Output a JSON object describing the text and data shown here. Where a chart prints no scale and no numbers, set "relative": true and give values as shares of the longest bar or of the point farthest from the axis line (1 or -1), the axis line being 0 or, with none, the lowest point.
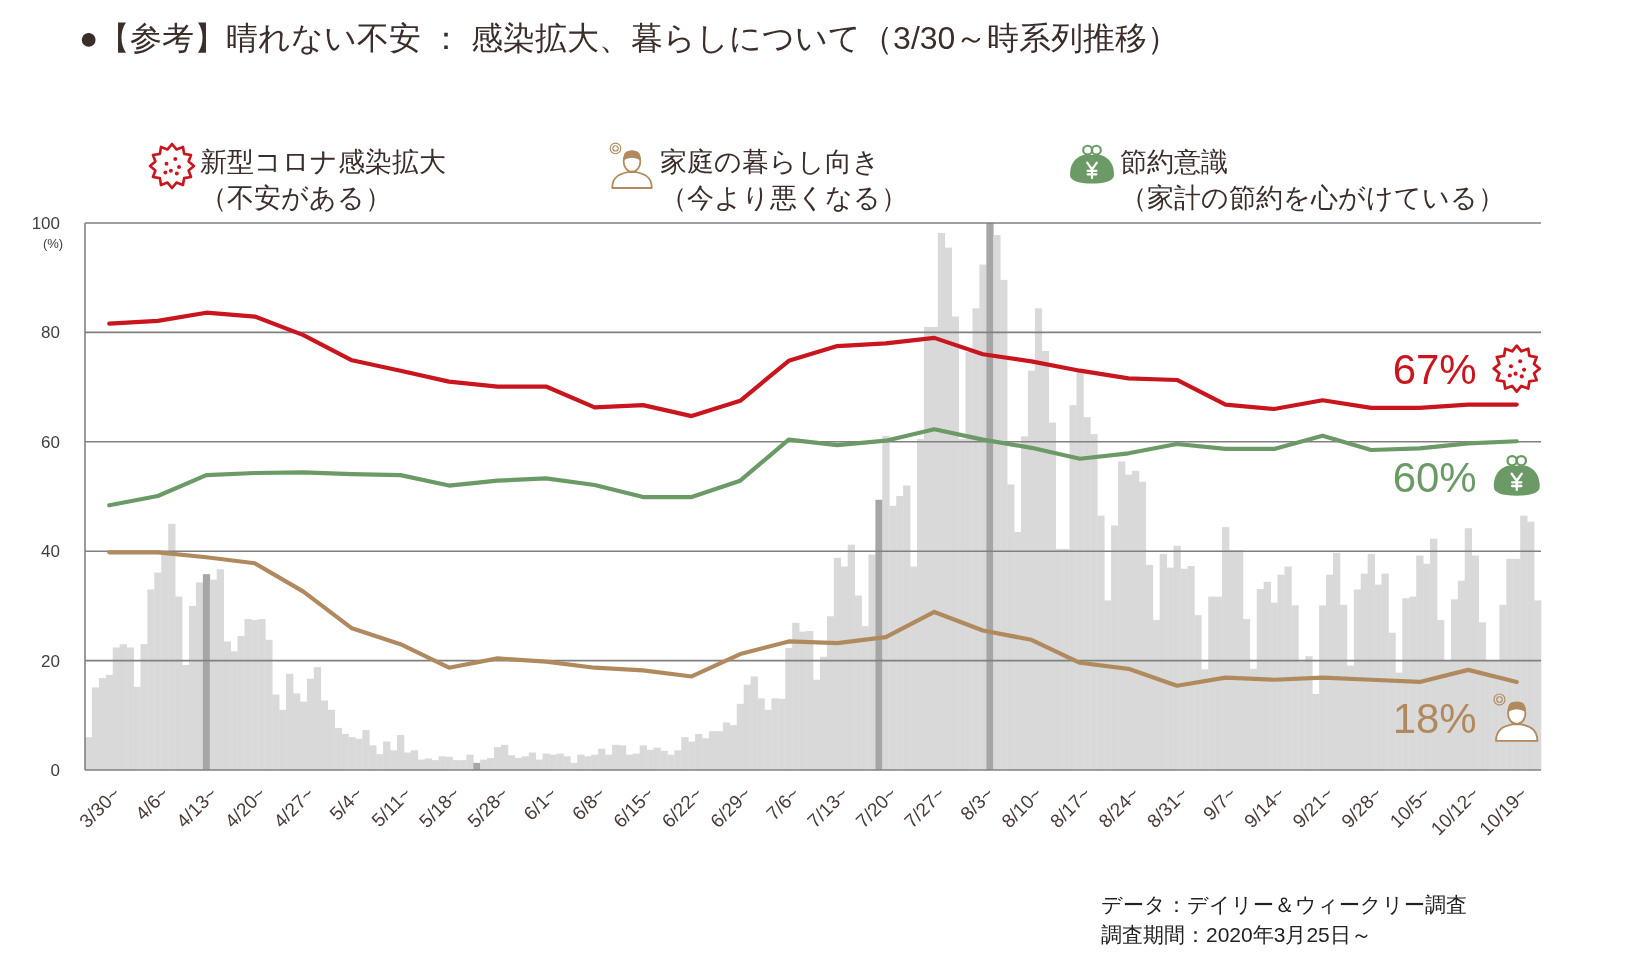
{
  "chart_data": [
    {
      "type": "line",
      "title": "●【参考】晴れない不安 ： 感染拡大、暮らしについて（3/30～時系列推移）",
      "ylabel": "(%)",
      "categories": [
        "3/30~",
        "4/6~",
        "4/13~",
        "4/20~",
        "4/27~",
        "5/4~",
        "5/11~",
        "5/18~",
        "5/28~",
        "6/1~",
        "6/8~",
        "6/15~",
        "6/22~",
        "6/29~",
        "7/6~",
        "7/13~",
        "7/20~",
        "7/27~",
        "8/3~",
        "8/10~",
        "8/17~",
        "8/24~",
        "8/31~",
        "9/7~",
        "9/14~",
        "9/21~",
        "9/28~",
        "10/5~",
        "10/12~",
        "10/19~"
      ],
      "series": [
        {
          "name": "新型コロナ感染拡大（不安がある）",
          "color": "#c9151e",
          "values": [
            81.6,
            82.1,
            83.6,
            82.9,
            79.5,
            74.9,
            73.0,
            71.0,
            70.1,
            70.1,
            66.3,
            66.7,
            64.7,
            67.5,
            74.8,
            77.5,
            78.0,
            79.0,
            76.0,
            74.7,
            73.0,
            71.6,
            71.3,
            66.8,
            66.0,
            67.6,
            66.2,
            66.2,
            66.8,
            66.8
          ]
        },
        {
          "name": "家庭の暮らし向き（今より悪くなる）",
          "color": "#b08a5e",
          "values": [
            39.8,
            39.8,
            38.9,
            37.8,
            32.6,
            25.9,
            23.0,
            18.7,
            20.4,
            19.8,
            18.7,
            18.2,
            17.1,
            21.2,
            23.5,
            23.2,
            24.3,
            28.9,
            25.5,
            23.8,
            19.6,
            18.5,
            15.4,
            16.9,
            16.5,
            16.9,
            16.5,
            16.1,
            18.3,
            16.1
          ]
        },
        {
          "name": "節約意識（家計の節約を心がけている）",
          "color": "#6b9a66",
          "values": [
            48.4,
            50.1,
            53.9,
            54.3,
            54.4,
            54.1,
            53.9,
            52.0,
            52.9,
            53.3,
            52.1,
            49.9,
            49.9,
            52.9,
            60.4,
            59.4,
            60.2,
            62.3,
            60.4,
            58.9,
            56.9,
            57.9,
            59.6,
            58.7,
            58.7,
            61.1,
            58.5,
            58.8,
            59.7,
            60.1
          ]
        }
      ],
      "ylim": [
        0,
        100
      ],
      "yticks": [
        0,
        20,
        40,
        60,
        80,
        100
      ],
      "grid": "y",
      "legend": "top",
      "line_style": "solid",
      "annotations": [
        {
          "text": "67%",
          "x": "10/19~",
          "y": 66.8
        },
        {
          "text": "60%",
          "x": "10/19~",
          "y": 60.1
        },
        {
          "text": "18%",
          "x": "10/19~",
          "y": 16.1
        },
        "データ：デイリー＆ウィークリー調査",
        "調査期間：2020年3月25日～"
      ]
    },
    {
      "type": "bar",
      "relative": true,
      "categories": [
        null,
        null,
        null,
        null,
        null,
        null,
        null,
        null,
        null,
        null,
        null,
        null,
        null,
        null,
        null,
        null,
        null,
        null,
        null,
        null,
        null,
        null,
        null,
        null,
        null,
        null,
        null,
        null,
        null,
        null,
        null,
        null,
        null,
        null,
        null,
        null,
        null,
        null,
        null,
        null,
        null,
        null,
        null,
        null,
        null,
        null,
        null,
        null,
        null,
        null,
        null,
        null,
        null,
        null,
        null,
        null,
        null,
        null,
        null,
        null,
        null,
        null,
        null,
        null,
        null,
        null,
        null,
        null,
        null,
        null,
        null,
        null,
        null,
        null,
        null,
        null,
        null,
        null,
        null,
        null,
        null,
        null,
        null,
        null,
        null,
        null,
        null,
        null,
        null,
        null,
        null,
        null,
        null,
        null,
        null,
        null,
        null,
        null,
        null,
        null,
        null,
        null,
        null,
        null,
        null,
        null,
        null,
        null,
        null,
        null,
        null,
        null,
        null,
        null,
        null,
        null,
        null,
        null,
        null,
        null,
        null,
        null,
        null,
        null,
        null,
        null,
        null,
        null,
        null,
        null,
        null,
        null,
        null,
        null,
        null,
        null,
        null,
        null,
        null,
        null,
        null,
        null,
        null,
        null,
        null,
        null,
        null,
        null,
        null,
        null,
        null,
        null,
        null,
        null,
        null,
        null,
        null,
        null,
        null,
        null,
        null,
        null,
        null,
        null,
        null,
        null,
        null,
        null,
        null,
        null,
        null,
        null,
        null,
        null,
        null,
        null,
        null,
        null,
        null,
        null,
        null,
        null,
        null,
        null,
        null,
        null,
        null,
        null,
        null,
        null,
        null,
        null,
        null,
        null,
        null,
        null,
        null,
        null,
        null,
        null,
        null,
        null,
        null,
        null,
        null,
        null,
        null,
        null,
        null,
        null
      ],
      "values": [
        0.06,
        0.151,
        0.168,
        0.174,
        0.224,
        0.23,
        0.224,
        0.152,
        0.23,
        0.33,
        0.361,
        0.398,
        0.45,
        0.317,
        0.192,
        0.3,
        0.343,
        0.358,
        0.348,
        0.367,
        0.235,
        0.217,
        0.245,
        0.276,
        0.274,
        0.276,
        0.238,
        0.138,
        0.11,
        0.176,
        0.14,
        0.125,
        0.167,
        0.188,
        0.127,
        0.11,
        0.077,
        0.066,
        0.06,
        0.057,
        0.073,
        0.045,
        0.029,
        0.052,
        0.036,
        0.064,
        0.032,
        0.036,
        0.019,
        0.021,
        0.018,
        0.025,
        0.024,
        0.018,
        0.018,
        0.028,
        0.013,
        0.019,
        0.022,
        0.042,
        0.046,
        0.027,
        0.022,
        0.025,
        0.032,
        0.019,
        0.03,
        0.028,
        0.03,
        0.025,
        0.013,
        0.028,
        0.025,
        0.028,
        0.039,
        0.028,
        0.046,
        0.045,
        0.028,
        0.03,
        0.045,
        0.037,
        0.041,
        0.035,
        0.028,
        0.036,
        0.06,
        0.052,
        0.066,
        0.058,
        0.071,
        0.071,
        0.087,
        0.082,
        0.121,
        0.156,
        0.171,
        0.131,
        0.11,
        0.131,
        0.13,
        0.223,
        0.269,
        0.253,
        0.254,
        0.165,
        0.207,
        0.281,
        0.388,
        0.372,
        0.412,
        0.319,
        0.263,
        0.394,
        0.494,
        0.611,
        0.483,
        0.501,
        0.52,
        0.372,
        0.605,
        0.81,
        0.81,
        0.982,
        0.955,
        0.829,
        0.605,
        0.764,
        0.844,
        0.924,
        1,
        0.978,
        0.896,
        0.522,
        0.435,
        0.61,
        0.73,
        0.844,
        0.766,
        0.635,
        0.404,
        0.404,
        0.667,
        0.732,
        0.645,
        0.614,
        0.465,
        0.31,
        0.447,
        0.564,
        0.54,
        0.547,
        0.527,
        0.375,
        0.274,
        0.395,
        0.37,
        0.41,
        0.368,
        0.373,
        0.283,
        0.184,
        0.317,
        0.317,
        0.444,
        0.402,
        0.402,
        0.276,
        0.185,
        0.331,
        0.344,
        0.306,
        0.357,
        0.372,
        0.301,
        0.198,
        0.208,
        0.139,
        0.301,
        0.357,
        0.397,
        0.302,
        0.191,
        0.33,
        0.359,
        0.395,
        0.339,
        0.359,
        0.251,
        0.178,
        0.314,
        0.317,
        0.392,
        0.377,
        0.423,
        0.274,
        0.199,
        0.312,
        0.346,
        0.442,
        0.392,
        0.27,
        0.201,
        0.201,
        0.302,
        0.386,
        0.386,
        0.465,
        0.454,
        0.31
      ],
      "colors": [
        "#d9d9d9",
        "#d9d9d9",
        "#d9d9d9",
        "#d9d9d9",
        "#d9d9d9",
        "#d9d9d9",
        "#d9d9d9",
        "#d9d9d9",
        "#d9d9d9",
        "#d9d9d9",
        "#d9d9d9",
        "#d9d9d9",
        "#d9d9d9",
        "#d9d9d9",
        "#d9d9d9",
        "#d9d9d9",
        "#d9d9d9",
        "#a6a6a6",
        "#d9d9d9",
        "#d9d9d9",
        "#d9d9d9",
        "#d9d9d9",
        "#d9d9d9",
        "#d9d9d9",
        "#d9d9d9",
        "#d9d9d9",
        "#d9d9d9",
        "#d9d9d9",
        "#d9d9d9",
        "#d9d9d9",
        "#d9d9d9",
        "#d9d9d9",
        "#d9d9d9",
        "#d9d9d9",
        "#d9d9d9",
        "#d9d9d9",
        "#d9d9d9",
        "#d9d9d9",
        "#d9d9d9",
        "#d9d9d9",
        "#d9d9d9",
        "#d9d9d9",
        "#d9d9d9",
        "#d9d9d9",
        "#d9d9d9",
        "#d9d9d9",
        "#d9d9d9",
        "#d9d9d9",
        "#d9d9d9",
        "#d9d9d9",
        "#d9d9d9",
        "#d9d9d9",
        "#d9d9d9",
        "#d9d9d9",
        "#d9d9d9",
        "#d9d9d9",
        "#a6a6a6",
        "#d9d9d9",
        "#d9d9d9",
        "#d9d9d9",
        "#d9d9d9",
        "#d9d9d9",
        "#d9d9d9",
        "#d9d9d9",
        "#d9d9d9",
        "#d9d9d9",
        "#d9d9d9",
        "#d9d9d9",
        "#d9d9d9",
        "#d9d9d9",
        "#d9d9d9",
        "#d9d9d9",
        "#d9d9d9",
        "#d9d9d9",
        "#d9d9d9",
        "#d9d9d9",
        "#d9d9d9",
        "#d9d9d9",
        "#d9d9d9",
        "#d9d9d9",
        "#d9d9d9",
        "#d9d9d9",
        "#d9d9d9",
        "#d9d9d9",
        "#d9d9d9",
        "#d9d9d9",
        "#d9d9d9",
        "#d9d9d9",
        "#d9d9d9",
        "#d9d9d9",
        "#d9d9d9",
        "#d9d9d9",
        "#d9d9d9",
        "#d9d9d9",
        "#d9d9d9",
        "#d9d9d9",
        "#d9d9d9",
        "#d9d9d9",
        "#d9d9d9",
        "#d9d9d9",
        "#d9d9d9",
        "#d9d9d9",
        "#d9d9d9",
        "#d9d9d9",
        "#d9d9d9",
        "#d9d9d9",
        "#d9d9d9",
        "#d9d9d9",
        "#d9d9d9",
        "#d9d9d9",
        "#d9d9d9",
        "#d9d9d9",
        "#d9d9d9",
        "#d9d9d9",
        "#a6a6a6",
        "#d9d9d9",
        "#d9d9d9",
        "#d9d9d9",
        "#d9d9d9",
        "#d9d9d9",
        "#d9d9d9",
        "#d9d9d9",
        "#d9d9d9",
        "#d9d9d9",
        "#d9d9d9",
        "#d9d9d9",
        "#d9d9d9",
        "#d9d9d9",
        "#d9d9d9",
        "#d9d9d9",
        "#a6a6a6",
        "#d9d9d9",
        "#d9d9d9",
        "#d9d9d9",
        "#d9d9d9",
        "#d9d9d9",
        "#d9d9d9",
        "#d9d9d9",
        "#d9d9d9",
        "#d9d9d9",
        "#d9d9d9",
        "#d9d9d9",
        "#d9d9d9",
        "#d9d9d9",
        "#d9d9d9",
        "#d9d9d9",
        "#d9d9d9",
        "#d9d9d9",
        "#d9d9d9",
        "#d9d9d9",
        "#d9d9d9",
        "#d9d9d9",
        "#d9d9d9",
        "#d9d9d9",
        "#d9d9d9",
        "#d9d9d9",
        "#d9d9d9",
        "#d9d9d9",
        "#d9d9d9",
        "#d9d9d9",
        "#d9d9d9",
        "#d9d9d9",
        "#d9d9d9",
        "#d9d9d9",
        "#d9d9d9",
        "#d9d9d9",
        "#d9d9d9",
        "#d9d9d9",
        "#d9d9d9",
        "#d9d9d9",
        "#d9d9d9",
        "#d9d9d9",
        "#d9d9d9",
        "#d9d9d9",
        "#d9d9d9",
        "#d9d9d9",
        "#d9d9d9",
        "#d9d9d9",
        "#d9d9d9",
        "#d9d9d9",
        "#d9d9d9",
        "#d9d9d9",
        "#d9d9d9",
        "#d9d9d9",
        "#d9d9d9",
        "#d9d9d9",
        "#d9d9d9",
        "#d9d9d9",
        "#d9d9d9",
        "#d9d9d9",
        "#d9d9d9",
        "#d9d9d9",
        "#d9d9d9",
        "#d9d9d9",
        "#d9d9d9",
        "#d9d9d9",
        "#d9d9d9",
        "#d9d9d9",
        "#d9d9d9",
        "#d9d9d9",
        "#d9d9d9",
        "#d9d9d9",
        "#d9d9d9",
        "#d9d9d9",
        "#d9d9d9",
        "#d9d9d9",
        "#d9d9d9",
        "#d9d9d9",
        "#d9d9d9",
        "#d9d9d9"
      ]
    }
  ]
}
